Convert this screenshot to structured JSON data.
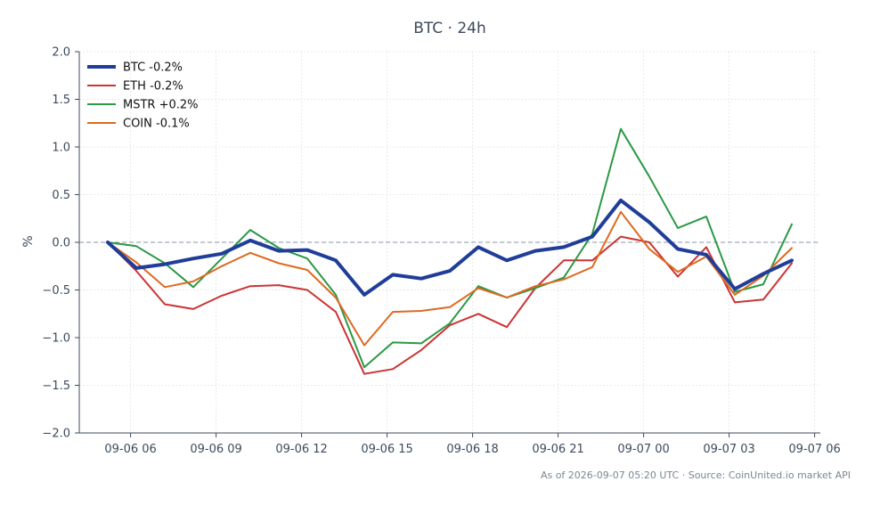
{
  "chart_data": {
    "type": "line",
    "title": "BTC · 24h",
    "xlabel": "",
    "ylabel": "%",
    "ylim": [
      -2.0,
      2.0
    ],
    "yticks": [
      2.0,
      1.5,
      1.0,
      0.5,
      0.0,
      -0.5,
      -1.0,
      -1.5,
      -2.0
    ],
    "ytick_labels": [
      "2.0",
      "1.5",
      "1.0",
      "0.5",
      "0.0",
      "−0.5",
      "−1.0",
      "−1.5",
      "−2.0"
    ],
    "xlim": [
      "2026-09-06 04:12",
      "2026-09-07 06:12"
    ],
    "xticks": [
      "2026-09-06 06:00",
      "2026-09-06 09:00",
      "2026-09-06 12:00",
      "2026-09-06 15:00",
      "2026-09-06 18:00",
      "2026-09-06 21:00",
      "2026-09-07 00:00",
      "2026-09-07 03:00",
      "2026-09-07 06:00"
    ],
    "xtick_labels": [
      "09-06 06",
      "09-06 09",
      "09-06 12",
      "09-06 15",
      "09-06 18",
      "09-06 21",
      "09-07 00",
      "09-07 03",
      "09-07 06"
    ],
    "x": [
      "2026-09-06 05:12",
      "2026-09-06 06:12",
      "2026-09-06 07:12",
      "2026-09-06 08:12",
      "2026-09-06 09:12",
      "2026-09-06 10:12",
      "2026-09-06 11:12",
      "2026-09-06 12:12",
      "2026-09-06 13:12",
      "2026-09-06 14:12",
      "2026-09-06 15:12",
      "2026-09-06 16:12",
      "2026-09-06 17:12",
      "2026-09-06 18:12",
      "2026-09-06 19:12",
      "2026-09-06 20:12",
      "2026-09-06 21:12",
      "2026-09-06 22:12",
      "2026-09-06 23:12",
      "2026-09-07 00:12",
      "2026-09-07 01:12",
      "2026-09-07 02:12",
      "2026-09-07 03:12",
      "2026-09-07 04:12",
      "2026-09-07 05:12"
    ],
    "reference_line": 0.0,
    "grid": true,
    "legend_position": "top-left",
    "series": [
      {
        "name": "BTC -0.2%",
        "color": "#1f3d99",
        "emphasis": true,
        "values": [
          0.0,
          -0.27,
          -0.23,
          -0.17,
          -0.12,
          0.02,
          -0.09,
          -0.08,
          -0.19,
          -0.55,
          -0.34,
          -0.38,
          -0.3,
          -0.05,
          -0.19,
          -0.09,
          -0.05,
          0.06,
          0.44,
          0.21,
          -0.07,
          -0.13,
          -0.49,
          -0.33,
          -0.19
        ]
      },
      {
        "name": "ETH -0.2%",
        "color": "#cc3333",
        "values": [
          0.0,
          -0.3,
          -0.65,
          -0.7,
          -0.56,
          -0.46,
          -0.45,
          -0.5,
          -0.73,
          -1.38,
          -1.33,
          -1.13,
          -0.87,
          -0.75,
          -0.89,
          -0.48,
          -0.19,
          -0.19,
          0.06,
          0.0,
          -0.36,
          -0.05,
          -0.63,
          -0.6,
          -0.22
        ]
      },
      {
        "name": "MSTR +0.2%",
        "color": "#2a9944",
        "values": [
          0.0,
          -0.04,
          -0.22,
          -0.47,
          -0.17,
          0.13,
          -0.06,
          -0.17,
          -0.55,
          -1.31,
          -1.05,
          -1.06,
          -0.85,
          -0.46,
          -0.58,
          -0.48,
          -0.37,
          0.09,
          1.19,
          0.69,
          0.15,
          0.27,
          -0.52,
          -0.44,
          0.19
        ]
      },
      {
        "name": "COIN -0.1%",
        "color": "#dd6a1f",
        "values": [
          0.0,
          -0.21,
          -0.47,
          -0.41,
          -0.25,
          -0.11,
          -0.22,
          -0.29,
          -0.58,
          -1.08,
          -0.73,
          -0.72,
          -0.68,
          -0.48,
          -0.58,
          -0.46,
          -0.39,
          -0.26,
          0.32,
          -0.07,
          -0.31,
          -0.15,
          -0.55,
          -0.35,
          -0.06
        ]
      }
    ],
    "footer": "As of 2026-09-07 05:20 UTC · Source: CoinUnited.io market API"
  }
}
